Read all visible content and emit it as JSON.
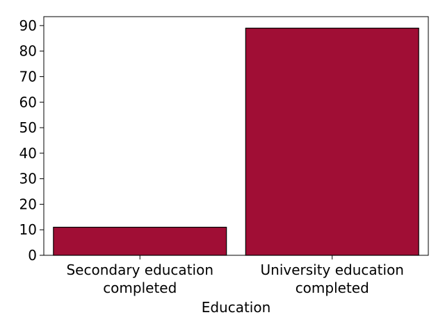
{
  "chart_data": {
    "type": "bar",
    "categories": [
      "Secondary education completed",
      "University education completed"
    ],
    "category_lines": [
      [
        "Secondary education",
        "completed"
      ],
      [
        "University education",
        "completed"
      ]
    ],
    "values": [
      11,
      89
    ],
    "xlabel": "Education",
    "ylabel": "",
    "ylim": [
      0,
      93.5
    ],
    "yticks": [
      0,
      10,
      20,
      30,
      40,
      50,
      60,
      70,
      80,
      90
    ],
    "grid": false,
    "colors": {
      "bar": "#a00e35",
      "bar_edge": "#000000",
      "axis": "#000000"
    }
  }
}
